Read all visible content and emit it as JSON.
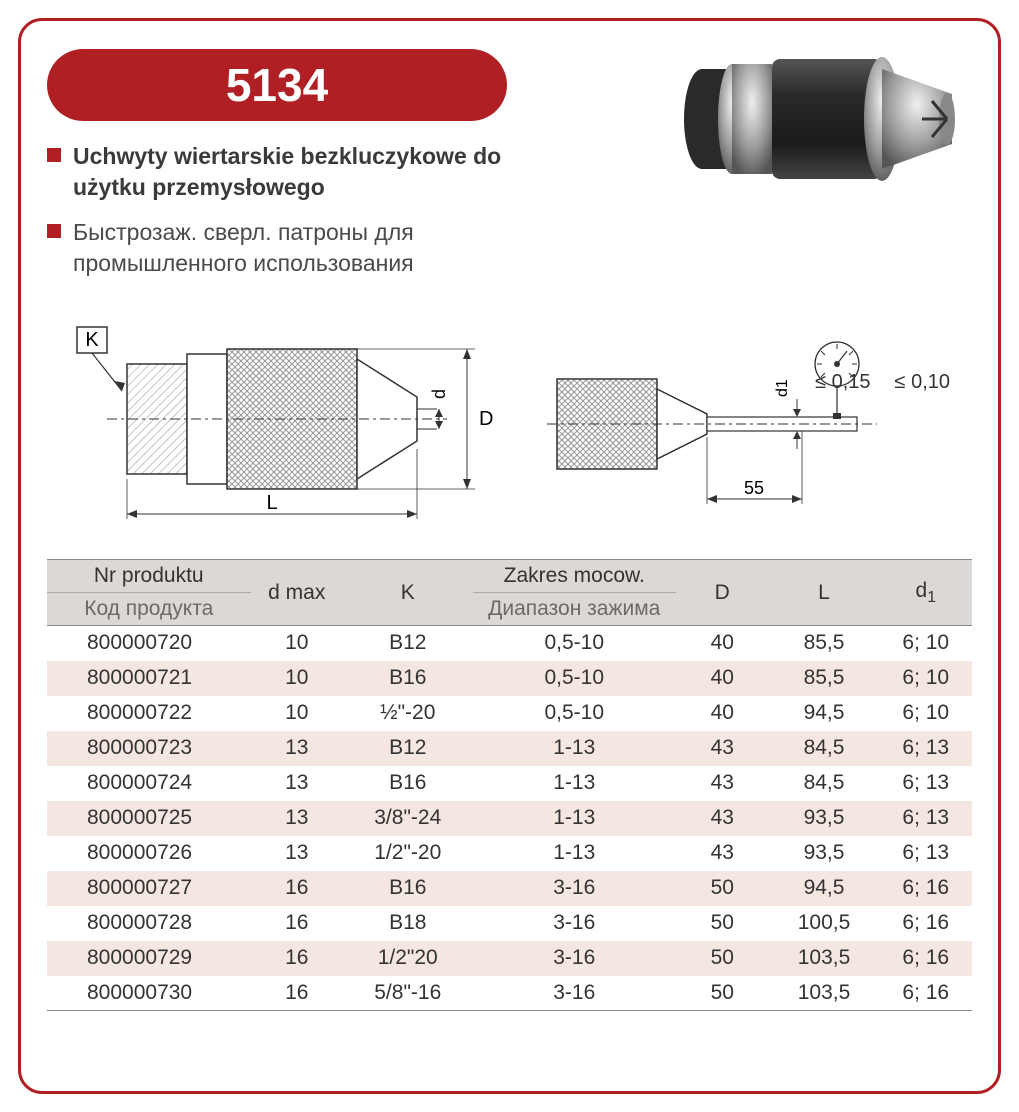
{
  "badge": {
    "number": "5134"
  },
  "descriptions": {
    "pl": "Uchwyty wiertarskie bezkluczykowe do użytku przemysłowego",
    "ru": "Быстрозаж. сверл. патроны для промышленного использования"
  },
  "diagram": {
    "labels": {
      "K": "K",
      "L": "L",
      "D": "D",
      "d": "d",
      "d1": "d1",
      "len55": "55"
    },
    "tolerances": {
      "t1": "≤ 0,15",
      "t2": "≤ 0,10"
    }
  },
  "table": {
    "headers": {
      "code_pl": "Nr produktu",
      "code_ru": "Код продукта",
      "dmax": "d max",
      "K": "K",
      "range_pl": "Zakres mocow.",
      "range_ru": "Диапазон зажима",
      "D": "D",
      "L": "L",
      "d1_base": "d",
      "d1_sub": "1"
    },
    "rows": [
      {
        "code": "800000720",
        "dmax": "10",
        "K": "B12",
        "range": "0,5-10",
        "D": "40",
        "L": "85,5",
        "d1": "6; 10",
        "stripe": false
      },
      {
        "code": "800000721",
        "dmax": "10",
        "K": "B16",
        "range": "0,5-10",
        "D": "40",
        "L": "85,5",
        "d1": "6; 10",
        "stripe": true
      },
      {
        "code": "800000722",
        "dmax": "10",
        "K": "½\"-20",
        "range": "0,5-10",
        "D": "40",
        "L": "94,5",
        "d1": "6; 10",
        "stripe": false
      },
      {
        "code": "800000723",
        "dmax": "13",
        "K": "B12",
        "range": "1-13",
        "D": "43",
        "L": "84,5",
        "d1": "6; 13",
        "stripe": true
      },
      {
        "code": "800000724",
        "dmax": "13",
        "K": "B16",
        "range": "1-13",
        "D": "43",
        "L": "84,5",
        "d1": "6; 13",
        "stripe": false
      },
      {
        "code": "800000725",
        "dmax": "13",
        "K": "3/8\"-24",
        "range": "1-13",
        "D": "43",
        "L": "93,5",
        "d1": "6; 13",
        "stripe": true
      },
      {
        "code": "800000726",
        "dmax": "13",
        "K": "1/2\"-20",
        "range": "1-13",
        "D": "43",
        "L": "93,5",
        "d1": "6; 13",
        "stripe": false
      },
      {
        "code": "800000727",
        "dmax": "16",
        "K": "B16",
        "range": "3-16",
        "D": "50",
        "L": "94,5",
        "d1": "6; 16",
        "stripe": true
      },
      {
        "code": "800000728",
        "dmax": "16",
        "K": "B18",
        "range": "3-16",
        "D": "50",
        "L": "100,5",
        "d1": "6; 16",
        "stripe": false
      },
      {
        "code": "800000729",
        "dmax": "16",
        "K": "1/2\"20",
        "range": "3-16",
        "D": "50",
        "L": "103,5",
        "d1": "6; 16",
        "stripe": true
      },
      {
        "code": "800000730",
        "dmax": "16",
        "K": "5/8\"-16",
        "range": "3-16",
        "D": "50",
        "L": "103,5",
        "d1": "6; 16",
        "stripe": false
      }
    ],
    "col_widths_pct": [
      22,
      10,
      14,
      22,
      10,
      12,
      10
    ],
    "header_bg": "#dcd8d5",
    "stripe_bg": "#f4e6e1",
    "border_color": "#888888"
  },
  "colors": {
    "brand_red": "#b01f24",
    "text_dark": "#3a3a3a",
    "text_grey": "#6a6a6a"
  }
}
